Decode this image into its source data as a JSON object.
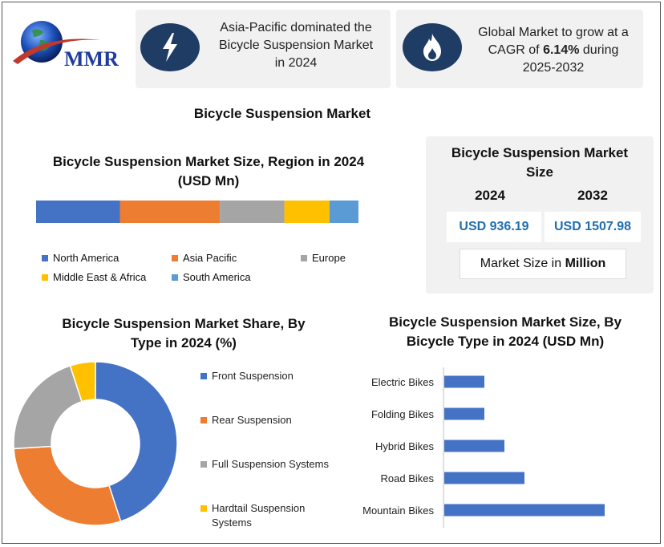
{
  "logo": {
    "text": "MMR"
  },
  "header": {
    "card1": {
      "icon": "lightning-bolt-icon",
      "text": "Asia-Pacific dominated the Bicycle Suspension Market in 2024"
    },
    "card2": {
      "icon": "flame-icon",
      "text_pre": "Global Market to grow at a CAGR of ",
      "text_bold": "6.14%",
      "text_post": " during 2025-2032"
    }
  },
  "main_title": "Bicycle Suspension Market",
  "region": {
    "title_line1": "Bicycle Suspension Market Size, Region in 2024",
    "title_line2": "(USD Mn)"
  },
  "market_size": {
    "title_line1": "Bicycle Suspension Market",
    "title_line2": "Size",
    "year1": "2024",
    "year2": "2032",
    "value1": "USD 936.19",
    "value2": "USD 1507.98",
    "unit_pre": "Market Size in ",
    "unit_bold": "Million"
  },
  "share": {
    "title_line1": "Bicycle Suspension Market Share, By",
    "title_line2": "Type in 2024 (%)"
  },
  "bytype": {
    "title_line1": "Bicycle Suspension Market Size, By",
    "title_line2": "Bicycle Type in 2024 (USD Mn)"
  },
  "chart_data": [
    {
      "type": "bar",
      "orientation": "stacked-horizontal",
      "title": "Bicycle Suspension Market Size, Region in 2024 (USD Mn)",
      "series": [
        {
          "name": "North America",
          "values": [
            26
          ],
          "color": "#4472c4"
        },
        {
          "name": "Asia Pacific",
          "values": [
            31
          ],
          "color": "#ed7d31"
        },
        {
          "name": "Europe",
          "values": [
            20
          ],
          "color": "#a5a5a5"
        },
        {
          "name": "Middle East & Africa",
          "values": [
            14
          ],
          "color": "#ffc000"
        },
        {
          "name": "South America",
          "values": [
            9
          ],
          "color": "#5b9bd5"
        }
      ],
      "legend": "bottom"
    },
    {
      "type": "pie",
      "variant": "donut",
      "title": "Bicycle Suspension Market Share, By Type in 2024 (%)",
      "categories": [
        "Front Suspension",
        "Rear Suspension",
        "Full Suspension Systems",
        "Hardtail Suspension Systems"
      ],
      "values": [
        45,
        29,
        21,
        5
      ],
      "colors": [
        "#4472c4",
        "#ed7d31",
        "#a5a5a5",
        "#ffc000"
      ],
      "legend": "right"
    },
    {
      "type": "bar",
      "orientation": "horizontal",
      "title": "Bicycle Suspension Market Size, By Bicycle Type in 2024 (USD Mn)",
      "categories": [
        "Electric Bikes",
        "Folding Bikes",
        "Hybrid Bikes",
        "Road Bikes",
        "Mountain Bikes"
      ],
      "values": [
        50,
        50,
        75,
        100,
        200
      ],
      "color": "#4472c4",
      "grid": false
    }
  ]
}
